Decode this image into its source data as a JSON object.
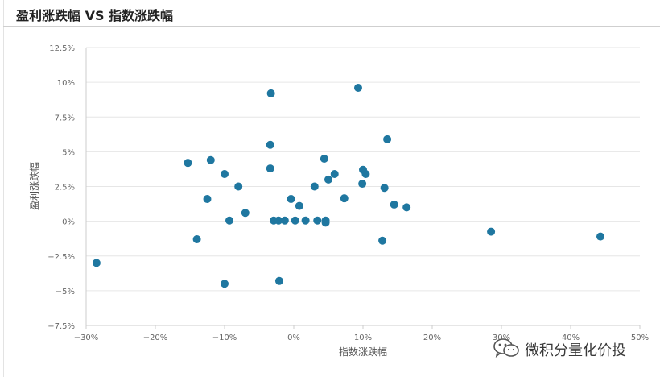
{
  "title": "盈利涨跌幅 VS 指数涨跌幅",
  "watermark": {
    "text": "微积分量化价投",
    "icon": "wechat-icon"
  },
  "chart_data": {
    "type": "scatter",
    "title": "盈利涨跌幅 VS 指数涨跌幅",
    "xlabel": "指数涨跌幅",
    "ylabel": "盈利涨跌幅",
    "xlim": [
      -30,
      50
    ],
    "ylim": [
      -7.5,
      12.5
    ],
    "x_ticks": [
      -30,
      -20,
      -10,
      0,
      10,
      20,
      30,
      40,
      50
    ],
    "x_tick_labels": [
      "−30%",
      "−20%",
      "−10%",
      "0%",
      "10%",
      "20%",
      "30%",
      "40%",
      "50%"
    ],
    "y_ticks": [
      12.5,
      10,
      7.5,
      5,
      2.5,
      0,
      -2.5,
      -5,
      -7.5
    ],
    "y_tick_labels": [
      "12.5%",
      "10%",
      "7.5%",
      "5%",
      "2.5%",
      "0%",
      "−2.5%",
      "−5%",
      "−7.5%"
    ],
    "grid": "horizontal",
    "color": "#1f77a0",
    "points": [
      {
        "x": -28.5,
        "y": -3.0
      },
      {
        "x": -15.3,
        "y": 4.2
      },
      {
        "x": -14.0,
        "y": -1.3
      },
      {
        "x": -12.5,
        "y": 1.6
      },
      {
        "x": -12.0,
        "y": 4.4
      },
      {
        "x": -10.0,
        "y": 3.4
      },
      {
        "x": -10.0,
        "y": -4.5
      },
      {
        "x": -9.3,
        "y": 0.05
      },
      {
        "x": -8.0,
        "y": 2.5
      },
      {
        "x": -7.0,
        "y": 0.6
      },
      {
        "x": -3.3,
        "y": 9.2
      },
      {
        "x": -3.4,
        "y": 5.5
      },
      {
        "x": -3.4,
        "y": 3.8
      },
      {
        "x": -2.9,
        "y": 0.05
      },
      {
        "x": -2.2,
        "y": 0.05
      },
      {
        "x": -2.1,
        "y": -4.3
      },
      {
        "x": -1.3,
        "y": 0.05
      },
      {
        "x": -0.4,
        "y": 1.6
      },
      {
        "x": 0.2,
        "y": 0.05
      },
      {
        "x": 0.8,
        "y": 1.1
      },
      {
        "x": 1.7,
        "y": 0.05
      },
      {
        "x": 3.0,
        "y": 2.5
      },
      {
        "x": 3.4,
        "y": 0.05
      },
      {
        "x": 4.4,
        "y": 4.5
      },
      {
        "x": 4.6,
        "y": 0.05
      },
      {
        "x": 4.6,
        "y": -0.1
      },
      {
        "x": 5.0,
        "y": 3.0
      },
      {
        "x": 5.9,
        "y": 3.4
      },
      {
        "x": 7.3,
        "y": 1.65
      },
      {
        "x": 9.3,
        "y": 9.6
      },
      {
        "x": 9.9,
        "y": 2.7
      },
      {
        "x": 10.0,
        "y": 3.7
      },
      {
        "x": 10.4,
        "y": 3.4
      },
      {
        "x": 12.8,
        "y": -1.4
      },
      {
        "x": 13.1,
        "y": 2.4
      },
      {
        "x": 13.5,
        "y": 5.9
      },
      {
        "x": 14.5,
        "y": 1.2
      },
      {
        "x": 16.3,
        "y": 1.0
      },
      {
        "x": 28.5,
        "y": -0.75
      },
      {
        "x": 44.3,
        "y": -1.1
      }
    ]
  }
}
